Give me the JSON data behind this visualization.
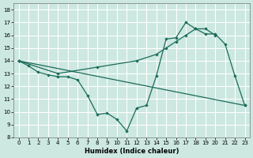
{
  "xlabel": "Humidex (Indice chaleur)",
  "bg_color": "#cce8e0",
  "line_color": "#1a6b5a",
  "grid_color": "#ffffff",
  "xlim": [
    -0.5,
    23.5
  ],
  "ylim": [
    8,
    18.5
  ],
  "yticks": [
    8,
    9,
    10,
    11,
    12,
    13,
    14,
    15,
    16,
    17,
    18
  ],
  "xticks": [
    0,
    1,
    2,
    3,
    4,
    5,
    6,
    7,
    8,
    9,
    10,
    11,
    12,
    13,
    14,
    15,
    16,
    17,
    18,
    19,
    20,
    21,
    22,
    23
  ],
  "line1_x": [
    0,
    1,
    2,
    3,
    4,
    5,
    6,
    7,
    8,
    9,
    10,
    11,
    12,
    13,
    14,
    15,
    16,
    17,
    18,
    19,
    20,
    21,
    22,
    23
  ],
  "line1_y": [
    14.0,
    13.6,
    13.1,
    12.9,
    12.75,
    12.75,
    12.5,
    11.3,
    9.8,
    9.9,
    9.4,
    8.5,
    10.3,
    10.5,
    12.8,
    15.7,
    15.8,
    17.0,
    16.5,
    16.1,
    16.1,
    15.3,
    12.8,
    10.5
  ],
  "line2_x": [
    0,
    4,
    8,
    12,
    14,
    15,
    16,
    17,
    18,
    19,
    20
  ],
  "line2_y": [
    14.0,
    13.0,
    13.5,
    14.0,
    14.5,
    15.0,
    15.5,
    16.0,
    16.5,
    16.5,
    16.0
  ],
  "line3_x": [
    0,
    23
  ],
  "line3_y": [
    14.0,
    10.5
  ]
}
